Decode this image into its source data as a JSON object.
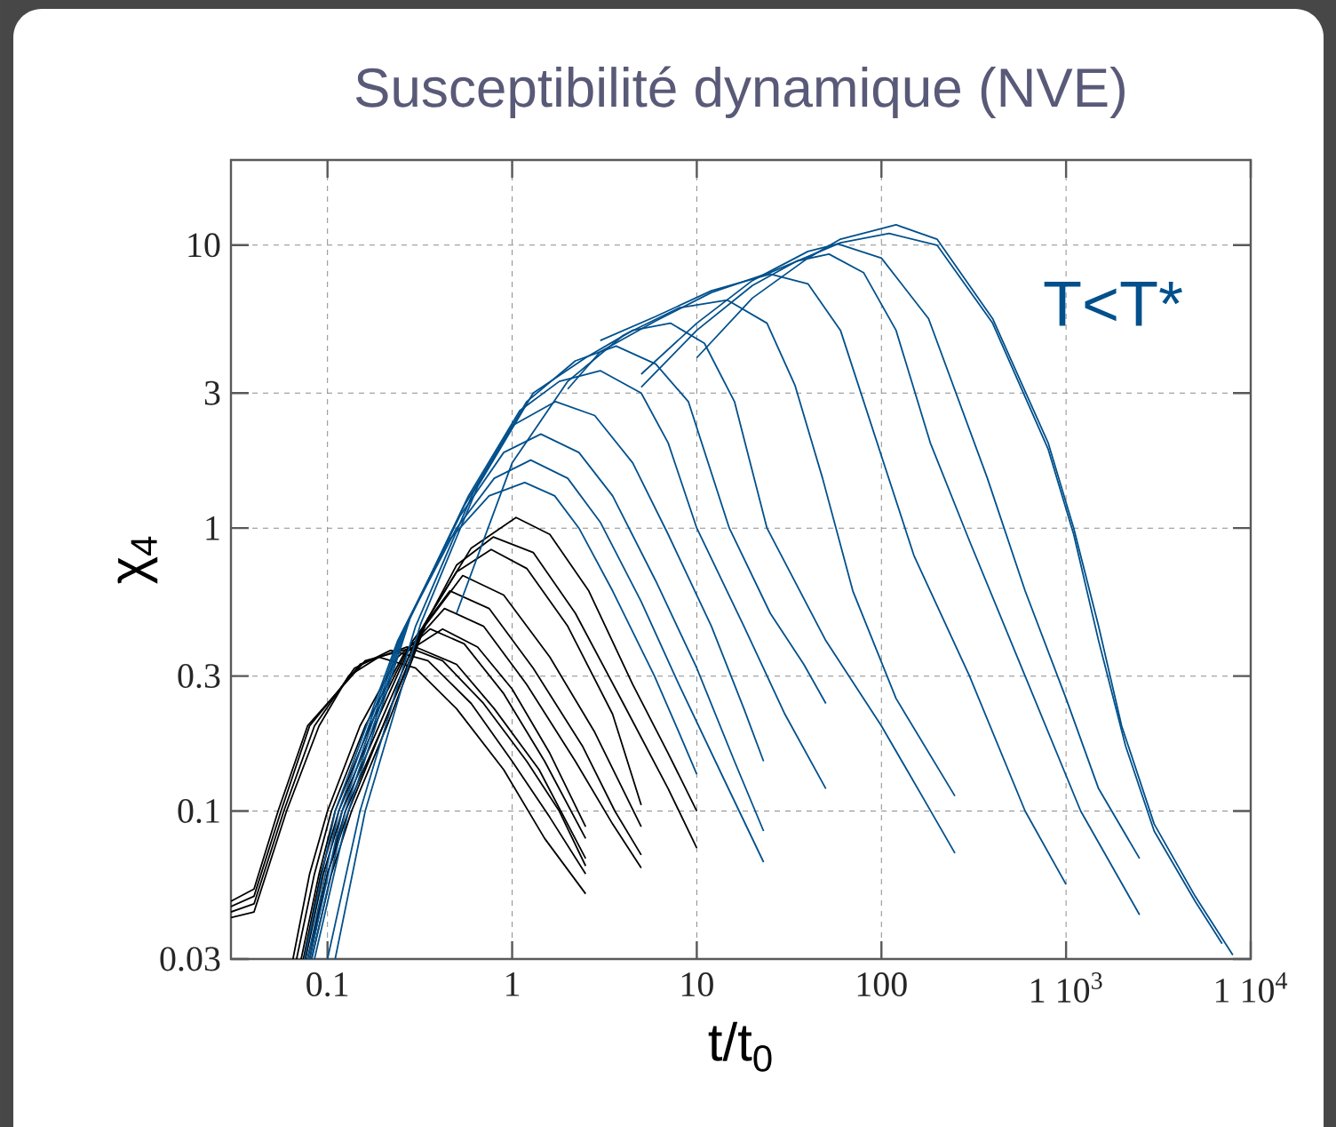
{
  "chart_data": {
    "type": "line",
    "title": "Susceptibilité dynamique (NVE)",
    "xlabel": "t/t$_{0}$",
    "ylabel": "χ$_{4}$",
    "log": "xy",
    "grid": true,
    "xlim": [
      0.03,
      10000
    ],
    "ylim": [
      0.03,
      20
    ],
    "xticks": [
      0.1,
      1,
      10,
      100,
      {
        "value": 1000,
        "label": "1 10$^{3}$"
      },
      {
        "value": 10000,
        "label": "1 10$^{4}$"
      }
    ],
    "yticks": [
      0.03,
      0.1,
      0.3,
      1,
      3,
      10
    ],
    "annotations": [
      "T<T*"
    ],
    "series": [
      {
        "color": "#000000",
        "x": [
          0.03,
          0.04,
          0.06,
          0.09,
          0.13,
          0.19,
          0.3,
          0.5,
          0.9,
          1.5,
          2.5
        ],
        "values": [
          0.042,
          0.044,
          0.1,
          0.2,
          0.3,
          0.35,
          0.32,
          0.23,
          0.14,
          0.08,
          0.051
        ]
      },
      {
        "color": "#000000",
        "x": [
          0.03,
          0.04,
          0.058,
          0.085,
          0.14,
          0.22,
          0.35,
          0.6,
          1.0,
          1.6,
          2.5
        ],
        "values": [
          0.044,
          0.047,
          0.1,
          0.2,
          0.32,
          0.37,
          0.34,
          0.24,
          0.15,
          0.095,
          0.06
        ]
      },
      {
        "color": "#000000",
        "x": [
          0.03,
          0.04,
          0.056,
          0.08,
          0.15,
          0.27,
          0.42,
          0.7,
          1.2,
          1.8,
          2.5
        ],
        "values": [
          0.046,
          0.05,
          0.1,
          0.2,
          0.33,
          0.38,
          0.34,
          0.24,
          0.15,
          0.1,
          0.064
        ]
      },
      {
        "color": "#000000",
        "x": [
          0.03,
          0.04,
          0.054,
          0.078,
          0.16,
          0.3,
          0.5,
          0.8,
          1.4,
          2.5
        ],
        "values": [
          0.048,
          0.053,
          0.1,
          0.2,
          0.34,
          0.38,
          0.33,
          0.23,
          0.14,
          0.068
        ]
      },
      {
        "color": "#000000",
        "x": [
          0.065,
          0.08,
          0.1,
          0.15,
          0.24,
          0.36,
          0.55,
          0.9,
          1.5,
          2.5
        ],
        "values": [
          0.03,
          0.06,
          0.1,
          0.2,
          0.35,
          0.44,
          0.39,
          0.26,
          0.15,
          0.08
        ]
      },
      {
        "color": "#000000",
        "x": [
          0.068,
          0.085,
          0.105,
          0.16,
          0.26,
          0.42,
          0.65,
          1.0,
          1.6,
          2.5
        ],
        "values": [
          0.03,
          0.06,
          0.1,
          0.2,
          0.36,
          0.44,
          0.38,
          0.27,
          0.16,
          0.088
        ]
      },
      {
        "color": "#000000",
        "x": [
          0.072,
          0.09,
          0.11,
          0.17,
          0.27,
          0.43,
          0.7,
          1.2,
          2.2,
          3.5,
          5
        ],
        "values": [
          0.03,
          0.06,
          0.1,
          0.2,
          0.37,
          0.52,
          0.45,
          0.28,
          0.15,
          0.09,
          0.063
        ]
      },
      {
        "color": "#000000",
        "x": [
          0.074,
          0.092,
          0.115,
          0.18,
          0.29,
          0.46,
          0.75,
          1.3,
          2.4,
          3.6,
          5
        ],
        "values": [
          0.03,
          0.06,
          0.1,
          0.2,
          0.4,
          0.6,
          0.52,
          0.32,
          0.17,
          0.1,
          0.07
        ]
      },
      {
        "color": "#000000",
        "x": [
          0.076,
          0.095,
          0.12,
          0.19,
          0.31,
          0.54,
          0.9,
          1.6,
          2.8,
          5
        ],
        "values": [
          0.03,
          0.06,
          0.1,
          0.2,
          0.42,
          0.68,
          0.58,
          0.35,
          0.19,
          0.088
        ]
      },
      {
        "color": "#000000",
        "x": [
          0.078,
          0.1,
          0.125,
          0.2,
          0.33,
          0.5,
          0.77,
          1.2,
          2,
          3.5,
          5
        ],
        "values": [
          0.03,
          0.06,
          0.1,
          0.2,
          0.45,
          0.7,
          0.84,
          0.72,
          0.45,
          0.22,
          0.105
        ]
      },
      {
        "color": "#000000",
        "x": [
          0.08,
          0.1,
          0.13,
          0.2,
          0.34,
          0.5,
          0.79,
          1.3,
          2.2,
          4,
          7,
          10
        ],
        "values": [
          0.03,
          0.06,
          0.1,
          0.2,
          0.46,
          0.74,
          0.93,
          0.82,
          0.5,
          0.24,
          0.12,
          0.074
        ]
      },
      {
        "color": "#000000",
        "x": [
          0.082,
          0.105,
          0.135,
          0.21,
          0.35,
          0.6,
          1.05,
          1.6,
          2.6,
          4.5,
          7,
          10
        ],
        "values": [
          0.03,
          0.06,
          0.1,
          0.2,
          0.48,
          0.85,
          1.09,
          0.95,
          0.6,
          0.28,
          0.16,
          0.1
        ]
      },
      {
        "color": "#00508c",
        "x": [
          0.075,
          0.11,
          0.24,
          0.45,
          0.75,
          1.17,
          1.7,
          2.3,
          3.5,
          5.9,
          8,
          10
        ],
        "values": [
          0.03,
          0.1,
          0.4,
          0.9,
          1.3,
          1.45,
          1.3,
          1.0,
          0.6,
          0.3,
          0.19,
          0.135
        ]
      },
      {
        "color": "#00508c",
        "x": [
          0.078,
          0.115,
          0.25,
          0.5,
          0.8,
          1.26,
          2,
          3,
          5,
          8,
          14,
          23
        ],
        "values": [
          0.03,
          0.1,
          0.42,
          1.0,
          1.5,
          1.74,
          1.5,
          1.05,
          0.55,
          0.28,
          0.13,
          0.066
        ]
      },
      {
        "color": "#00508c",
        "x": [
          0.08,
          0.12,
          0.26,
          0.52,
          0.9,
          1.43,
          2.3,
          3.5,
          6,
          10,
          16,
          23
        ],
        "values": [
          0.03,
          0.1,
          0.44,
          1.1,
          1.85,
          2.15,
          1.85,
          1.3,
          0.65,
          0.32,
          0.15,
          0.085
        ]
      },
      {
        "color": "#00508c",
        "x": [
          0.082,
          0.125,
          0.27,
          0.55,
          1.0,
          1.72,
          2.8,
          4.5,
          7,
          12,
          18,
          23
        ],
        "values": [
          0.03,
          0.1,
          0.46,
          1.2,
          2.3,
          2.8,
          2.5,
          1.7,
          0.95,
          0.45,
          0.23,
          0.15
        ]
      },
      {
        "color": "#00508c",
        "x": [
          0.085,
          0.13,
          0.28,
          0.58,
          1.1,
          1.8,
          3,
          5,
          7,
          10,
          18,
          30,
          50
        ],
        "values": [
          0.03,
          0.1,
          0.48,
          1.3,
          2.6,
          3.3,
          3.6,
          3.0,
          2.0,
          1.0,
          0.45,
          0.22,
          0.12
        ]
      },
      {
        "color": "#00508c",
        "x": [
          0.1,
          0.15,
          0.3,
          0.62,
          1.2,
          2.2,
          3.66,
          6,
          9,
          15,
          25,
          38,
          50
        ],
        "values": [
          0.03,
          0.1,
          0.45,
          1.35,
          2.8,
          3.9,
          4.4,
          3.8,
          2.8,
          1.0,
          0.5,
          0.33,
          0.24
        ]
      },
      {
        "color": "#00508c",
        "x": [
          0.11,
          0.16,
          0.32,
          0.65,
          1.3,
          2.5,
          4.5,
          7.2,
          11,
          16,
          24,
          50,
          100,
          170,
          250
        ],
        "values": [
          0.03,
          0.1,
          0.46,
          1.4,
          3.0,
          4.0,
          5.0,
          5.3,
          4.5,
          2.8,
          1.0,
          0.4,
          0.2,
          0.11,
          0.071
        ]
      },
      {
        "color": "#00508c",
        "x": [
          0.5,
          1.0,
          2,
          4,
          8,
          14.6,
          24,
          34,
          48,
          70,
          120,
          250
        ],
        "values": [
          0.5,
          1.7,
          3.3,
          4.8,
          6.0,
          6.4,
          5.3,
          3.2,
          1.5,
          0.6,
          0.25,
          0.113
        ]
      },
      {
        "color": "#00508c",
        "x": [
          3,
          6,
          12,
          25,
          40,
          60,
          100,
          150,
          300,
          600,
          1000
        ],
        "values": [
          4.6,
          5.6,
          6.9,
          7.9,
          7.3,
          5.0,
          1.8,
          0.8,
          0.3,
          0.1,
          0.055
        ]
      },
      {
        "color": "#00508c",
        "x": [
          5,
          10,
          20,
          35,
          52,
          80,
          120,
          184,
          300,
          600,
          1200,
          2500
        ],
        "values": [
          3.15,
          5.0,
          7.2,
          8.8,
          9.3,
          8.0,
          5.0,
          2.0,
          0.9,
          0.3,
          0.1,
          0.043
        ]
      },
      {
        "color": "#00508c",
        "x": [
          5,
          10,
          20,
          40,
          58,
          100,
          180,
          375,
          600,
          1000,
          1500,
          2500
        ],
        "values": [
          3.5,
          5.3,
          7.5,
          9.5,
          10.1,
          9.0,
          5.5,
          1.5,
          0.6,
          0.25,
          0.12,
          0.068
        ]
      },
      {
        "color": "#00508c",
        "x": [
          10,
          20,
          40,
          60,
          120,
          200,
          400,
          800,
          1100,
          1500,
          2000,
          3000,
          5000,
          8000
        ],
        "values": [
          4.0,
          6.5,
          9.0,
          10.5,
          11.8,
          10.5,
          5.5,
          2.0,
          1.0,
          0.45,
          0.2,
          0.09,
          0.05,
          0.031
        ]
      },
      {
        "color": "#00508c",
        "x": [
          2,
          3,
          6,
          12,
          25,
          60,
          110,
          200,
          400,
          800,
          1100,
          1500,
          2100,
          3000,
          5000,
          7000
        ],
        "values": [
          3.1,
          4.2,
          5.4,
          6.8,
          8.0,
          10.2,
          11.0,
          10.0,
          5.3,
          1.9,
          0.95,
          0.4,
          0.17,
          0.085,
          0.048,
          0.034
        ]
      }
    ]
  }
}
